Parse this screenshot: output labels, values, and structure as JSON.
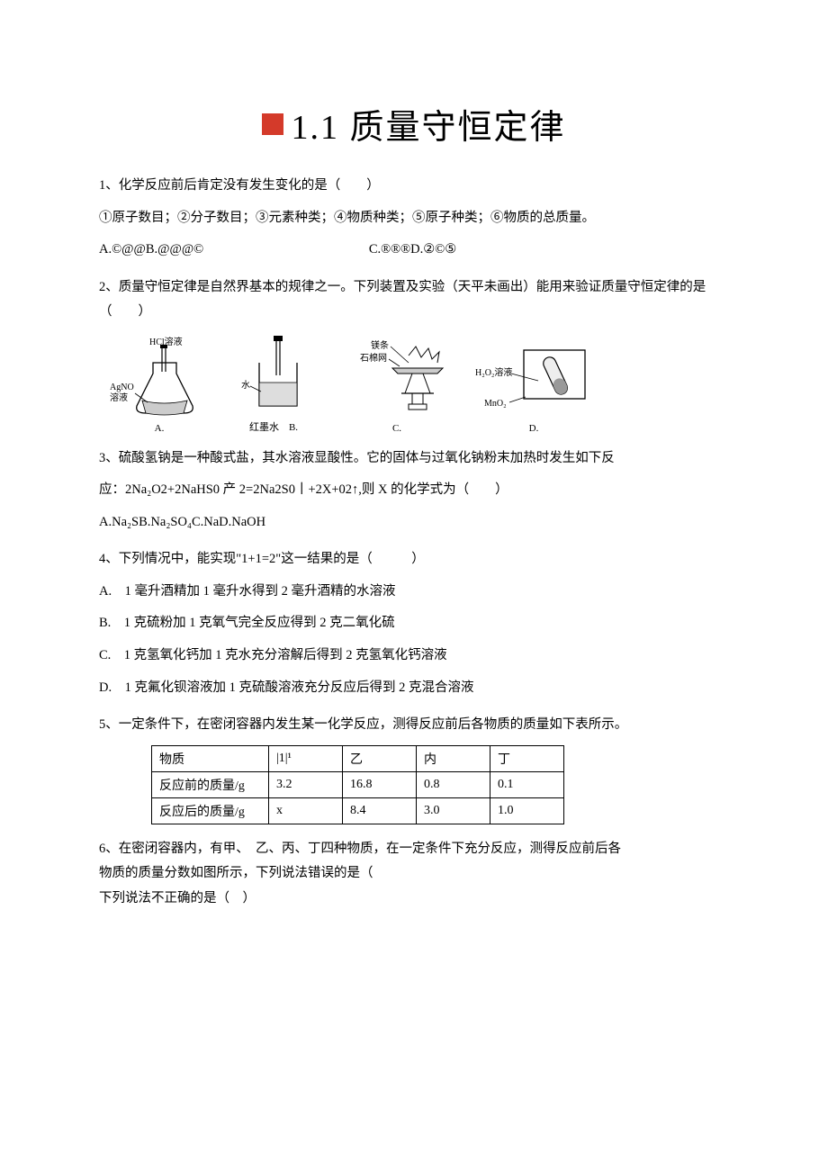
{
  "title": "1.1 质量守恒定律",
  "q1": {
    "stem": "1、化学反应前后肯定没有发生变化的是（　　）",
    "line2": "①原子数目；②分子数目；③元素种类；④物质种类；⑤原子种类；⑥物质的总质量。",
    "optA": "A.©@@B.@@@©",
    "optC": "C.®®®D.②©⑤"
  },
  "q2": {
    "stem": "2、质量守恒定律是自然界基本的规律之一。下列装置及实验（天平未画出）能用来验证质量守恒定律的是（　　）",
    "labels": {
      "hcl": "HCl溶液",
      "agno3_1": "AgNO",
      "agno3_2": "溶液",
      "water": "水",
      "redink": "红墨水",
      "mg": "镁条",
      "asbestos": "石棉网",
      "h2o2": "H₂O₂溶液",
      "mno2": "MnO₂",
      "A": "A.",
      "B": "B.",
      "C": "C.",
      "D": "D."
    }
  },
  "q3": {
    "stem": "3、硫酸氢钠是一种酸式盐，其水溶液显酸性。它的固体与过氧化钠粉末加热时发生如下反",
    "eq": "应：2Na₂O2+2NaHS0 产 2=2Na2S0丨+2X+02↑,则 X 的化学式为（　　）",
    "opts": "A.Na₂SB.Na₂SO₄C.NaD.NaOH"
  },
  "q4": {
    "stem": "4、下列情况中，能实现\"1+1=2\"这一结果的是（　　　）",
    "A": "A.　1 毫升酒精加 1 毫升水得到 2 毫升酒精的水溶液",
    "B": "B.　1 克硫粉加 1 克氧气完全反应得到 2 克二氧化硫",
    "C": "C.　1 克氢氧化钙加 1 克水充分溶解后得到 2 克氢氧化钙溶液",
    "D": "D.　1 克氟化钡溶液加 1 克硫酸溶液充分反应后得到 2 克混合溶液"
  },
  "q5": {
    "stem": "5、一定条件下，在密闭容器内发生某一化学反应，测得反应前后各物质的质量如下表所示。",
    "table": {
      "cols": [
        "物质",
        "|1|¹",
        "乙",
        "内",
        "丁"
      ],
      "widths": [
        130,
        82,
        82,
        82,
        82
      ],
      "rows": [
        [
          "反应前的质量/g",
          "3.2",
          "16.8",
          "0.8",
          "0.1"
        ],
        [
          "反应后的质量/g",
          "x",
          "8.4",
          "3.0",
          "1.0"
        ]
      ]
    }
  },
  "q6": {
    "stem1": "6、在密闭容器内，有甲、　乙、丙、丁四种物质，在一定条件下充分反应，测得反应前后各",
    "stem2": "物质的质量分数如图所示，下列说法错误的是（",
    "stem3": "下列说法不正确的是（　）"
  },
  "colors": {
    "red": "#d43a2a",
    "text": "#000000",
    "bg": "#ffffff",
    "border": "#000000"
  }
}
